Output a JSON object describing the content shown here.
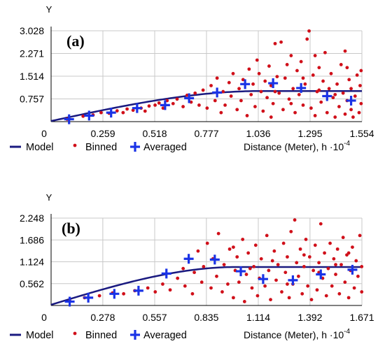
{
  "chart_data": [
    {
      "type": "scatter",
      "panel_label": "(a)",
      "ylabel": "Y",
      "xlabel": "Distance (Meter), h",
      "xlabel_exponent": "·10",
      "xlabel_power": "-4",
      "xlim": [
        0,
        1.554
      ],
      "ylim": [
        0,
        3.028
      ],
      "xticks": [
        "0",
        "0.259",
        "0.518",
        "0.777",
        "1.036",
        "1.295",
        "1.554"
      ],
      "xtick_values": [
        0,
        0.259,
        0.518,
        0.777,
        1.036,
        1.295,
        1.554
      ],
      "yticks": [
        "0.757",
        "1.514",
        "2.271",
        "3.028"
      ],
      "ytick_values": [
        0.757,
        1.514,
        2.271,
        3.028
      ],
      "grid": true,
      "legend": [
        "Model",
        "Binned",
        "Averaged"
      ],
      "model": {
        "nugget": 0.02,
        "sill": 1.0,
        "range": 1.05
      },
      "binned": [
        [
          0.08,
          0.08
        ],
        [
          0.16,
          0.18
        ],
        [
          0.21,
          0.22
        ],
        [
          0.25,
          0.3
        ],
        [
          0.29,
          0.28
        ],
        [
          0.33,
          0.36
        ],
        [
          0.36,
          0.3
        ],
        [
          0.38,
          0.42
        ],
        [
          0.41,
          0.38
        ],
        [
          0.45,
          0.45
        ],
        [
          0.47,
          0.35
        ],
        [
          0.49,
          0.52
        ],
        [
          0.52,
          0.55
        ],
        [
          0.54,
          0.62
        ],
        [
          0.56,
          0.45
        ],
        [
          0.58,
          0.7
        ],
        [
          0.61,
          0.6
        ],
        [
          0.63,
          0.75
        ],
        [
          0.66,
          0.5
        ],
        [
          0.68,
          0.88
        ],
        [
          0.7,
          0.65
        ],
        [
          0.72,
          0.95
        ],
        [
          0.74,
          0.55
        ],
        [
          0.76,
          1.05
        ],
        [
          0.78,
          0.45
        ],
        [
          0.8,
          1.2
        ],
        [
          0.82,
          0.7
        ],
        [
          0.83,
          1.45
        ],
        [
          0.85,
          0.3
        ],
        [
          0.86,
          1.0
        ],
        [
          0.87,
          0.55
        ],
        [
          0.89,
          1.3
        ],
        [
          0.9,
          0.85
        ],
        [
          0.91,
          1.6
        ],
        [
          0.93,
          0.4
        ],
        [
          0.94,
          1.1
        ],
        [
          0.95,
          0.7
        ],
        [
          0.96,
          1.4
        ],
        [
          0.98,
          0.2
        ],
        [
          0.99,
          1.75
        ],
        [
          1.0,
          0.9
        ],
        [
          1.01,
          1.25
        ],
        [
          1.02,
          0.5
        ],
        [
          1.03,
          2.05
        ],
        [
          1.04,
          1.6
        ],
        [
          1.05,
          1.0
        ],
        [
          1.06,
          0.35
        ],
        [
          1.07,
          1.35
        ],
        [
          1.08,
          0.8
        ],
        [
          1.09,
          1.85
        ],
        [
          1.1,
          0.15
        ],
        [
          1.1,
          1.2
        ],
        [
          1.11,
          0.6
        ],
        [
          1.12,
          2.6
        ],
        [
          1.13,
          1.5
        ],
        [
          1.14,
          0.95
        ],
        [
          1.15,
          2.65
        ],
        [
          1.16,
          0.4
        ],
        [
          1.17,
          1.45
        ],
        [
          1.18,
          1.9
        ],
        [
          1.19,
          0.75
        ],
        [
          1.2,
          2.2
        ],
        [
          1.21,
          1.1
        ],
        [
          1.22,
          0.3
        ],
        [
          1.23,
          1.7
        ],
        [
          1.24,
          0.9
        ],
        [
          1.25,
          2.0
        ],
        [
          1.26,
          0.55
        ],
        [
          1.27,
          1.25
        ],
        [
          1.28,
          2.75
        ],
        [
          1.29,
          3.02
        ],
        [
          1.3,
          0.45
        ],
        [
          1.31,
          1.55
        ],
        [
          1.32,
          0.2
        ],
        [
          1.32,
          2.2
        ],
        [
          1.33,
          1.0
        ],
        [
          1.34,
          1.8
        ],
        [
          1.35,
          0.65
        ],
        [
          1.36,
          1.35
        ],
        [
          1.37,
          2.3
        ],
        [
          1.38,
          0.3
        ],
        [
          1.39,
          1.1
        ],
        [
          1.4,
          1.6
        ],
        [
          1.41,
          0.8
        ],
        [
          1.42,
          0.15
        ],
        [
          1.43,
          1.25
        ],
        [
          1.44,
          0.5
        ],
        [
          1.45,
          1.9
        ],
        [
          1.46,
          0.95
        ],
        [
          1.47,
          0.25
        ],
        [
          1.47,
          2.35
        ],
        [
          1.48,
          0.7
        ],
        [
          1.49,
          1.4
        ],
        [
          1.5,
          0.4
        ],
        [
          1.5,
          1.1
        ],
        [
          1.51,
          0.15
        ],
        [
          1.52,
          0.85
        ],
        [
          1.53,
          1.55
        ],
        [
          1.54,
          0.3
        ],
        [
          1.545,
          1.2
        ],
        [
          1.55,
          0.6
        ],
        [
          1.55,
          1.7
        ],
        [
          1.12,
          1.0
        ],
        [
          1.2,
          0.6
        ],
        [
          1.26,
          1.45
        ],
        [
          1.34,
          1.05
        ],
        [
          1.42,
          0.9
        ],
        [
          1.48,
          1.8
        ]
      ],
      "averaged": [
        [
          0.09,
          0.08
        ],
        [
          0.19,
          0.2
        ],
        [
          0.3,
          0.3
        ],
        [
          0.43,
          0.45
        ],
        [
          0.57,
          0.55
        ],
        [
          0.69,
          0.78
        ],
        [
          0.83,
          0.97
        ],
        [
          0.97,
          1.25
        ],
        [
          1.11,
          1.28
        ],
        [
          1.25,
          1.12
        ],
        [
          1.38,
          0.85
        ],
        [
          1.5,
          0.7
        ]
      ]
    },
    {
      "type": "scatter",
      "panel_label": "(b)",
      "ylabel": "Y",
      "xlabel": "Distance (Meter), h",
      "xlabel_exponent": "·10",
      "xlabel_power": "-4",
      "xlim": [
        0,
        1.671
      ],
      "ylim": [
        0,
        2.248
      ],
      "xticks": [
        "0",
        "0.278",
        "0.557",
        "0.835",
        "1.114",
        "1.392",
        "1.671"
      ],
      "xtick_values": [
        0,
        0.278,
        0.557,
        0.835,
        1.114,
        1.392,
        1.671
      ],
      "yticks": [
        "0.562",
        "1.124",
        "1.686",
        "2.248"
      ],
      "ytick_values": [
        0.562,
        1.124,
        1.686,
        2.248
      ],
      "grid": true,
      "legend": [
        "Model",
        "Binned",
        "Averaged"
      ],
      "model": {
        "nugget": 0.02,
        "sill": 0.97,
        "range": 1.0
      },
      "binned": [
        [
          0.1,
          0.12
        ],
        [
          0.18,
          0.2
        ],
        [
          0.26,
          0.25
        ],
        [
          0.33,
          0.32
        ],
        [
          0.39,
          0.3
        ],
        [
          0.45,
          0.38
        ],
        [
          0.52,
          0.45
        ],
        [
          0.56,
          0.35
        ],
        [
          0.6,
          0.55
        ],
        [
          0.64,
          0.4
        ],
        [
          0.68,
          0.7
        ],
        [
          0.71,
          0.95
        ],
        [
          0.72,
          0.5
        ],
        [
          0.74,
          1.2
        ],
        [
          0.76,
          0.3
        ],
        [
          0.77,
          0.85
        ],
        [
          0.79,
          1.4
        ],
        [
          0.81,
          0.6
        ],
        [
          0.82,
          1.0
        ],
        [
          0.84,
          1.6
        ],
        [
          0.86,
          0.45
        ],
        [
          0.87,
          1.2
        ],
        [
          0.89,
          0.75
        ],
        [
          0.9,
          1.85
        ],
        [
          0.92,
          0.35
        ],
        [
          0.93,
          1.05
        ],
        [
          0.95,
          0.55
        ],
        [
          0.96,
          1.45
        ],
        [
          0.98,
          0.2
        ],
        [
          0.99,
          0.9
        ],
        [
          1.0,
          1.25
        ],
        [
          1.01,
          0.6
        ],
        [
          1.03,
          1.7
        ],
        [
          1.04,
          0.1
        ],
        [
          1.05,
          0.8
        ],
        [
          1.06,
          1.35
        ],
        [
          1.08,
          0.45
        ],
        [
          1.09,
          1.0
        ],
        [
          1.1,
          1.55
        ],
        [
          1.11,
          0.25
        ],
        [
          1.12,
          0.7
        ],
        [
          1.13,
          1.2
        ],
        [
          1.15,
          0.5
        ],
        [
          1.16,
          1.8
        ],
        [
          1.17,
          0.9
        ],
        [
          1.18,
          0.15
        ],
        [
          1.2,
          1.4
        ],
        [
          1.21,
          0.65
        ],
        [
          1.22,
          1.05
        ],
        [
          1.24,
          0.35
        ],
        [
          1.25,
          1.6
        ],
        [
          1.26,
          0.85
        ],
        [
          1.27,
          1.25
        ],
        [
          1.28,
          0.2
        ],
        [
          1.29,
          1.9
        ],
        [
          1.3,
          0.55
        ],
        [
          1.31,
          2.2
        ],
        [
          1.32,
          1.1
        ],
        [
          1.33,
          0.75
        ],
        [
          1.34,
          1.45
        ],
        [
          1.35,
          0.3
        ],
        [
          1.36,
          1.0
        ],
        [
          1.37,
          1.7
        ],
        [
          1.38,
          0.5
        ],
        [
          1.39,
          1.25
        ],
        [
          1.4,
          0.15
        ],
        [
          1.41,
          0.9
        ],
        [
          1.42,
          1.55
        ],
        [
          1.43,
          0.4
        ],
        [
          1.44,
          1.1
        ],
        [
          1.45,
          2.1
        ],
        [
          1.46,
          0.7
        ],
        [
          1.47,
          1.35
        ],
        [
          1.48,
          0.25
        ],
        [
          1.49,
          0.95
        ],
        [
          1.5,
          1.6
        ],
        [
          1.51,
          0.5
        ],
        [
          1.52,
          1.2
        ],
        [
          1.53,
          0.8
        ],
        [
          1.54,
          1.45
        ],
        [
          1.55,
          0.3
        ],
        [
          1.56,
          1.05
        ],
        [
          1.57,
          1.75
        ],
        [
          1.58,
          0.6
        ],
        [
          1.59,
          1.3
        ],
        [
          1.6,
          0.2
        ],
        [
          1.61,
          0.9
        ],
        [
          1.62,
          1.5
        ],
        [
          1.63,
          0.45
        ],
        [
          1.64,
          1.15
        ],
        [
          1.65,
          0.75
        ],
        [
          1.66,
          1.8
        ],
        [
          1.67,
          0.35
        ],
        [
          1.67,
          1.0
        ],
        [
          0.98,
          1.5
        ],
        [
          1.07,
          0.95
        ],
        [
          1.19,
          1.15
        ],
        [
          1.27,
          0.55
        ],
        [
          1.36,
          1.3
        ],
        [
          1.44,
          0.85
        ],
        [
          1.53,
          1.05
        ],
        [
          1.6,
          1.35
        ]
      ],
      "averaged": [
        [
          0.1,
          0.1
        ],
        [
          0.2,
          0.2
        ],
        [
          0.34,
          0.3
        ],
        [
          0.47,
          0.38
        ],
        [
          0.62,
          0.82
        ],
        [
          0.74,
          1.2
        ],
        [
          0.88,
          1.18
        ],
        [
          1.02,
          0.88
        ],
        [
          1.14,
          0.68
        ],
        [
          1.3,
          0.65
        ],
        [
          1.45,
          0.8
        ],
        [
          1.62,
          0.92
        ]
      ]
    }
  ],
  "colors": {
    "model": "#1a1a80",
    "binned": "#d0101a",
    "averaged": "#1a33e6",
    "grid": "#c8c8c8",
    "axis": "#000000"
  }
}
